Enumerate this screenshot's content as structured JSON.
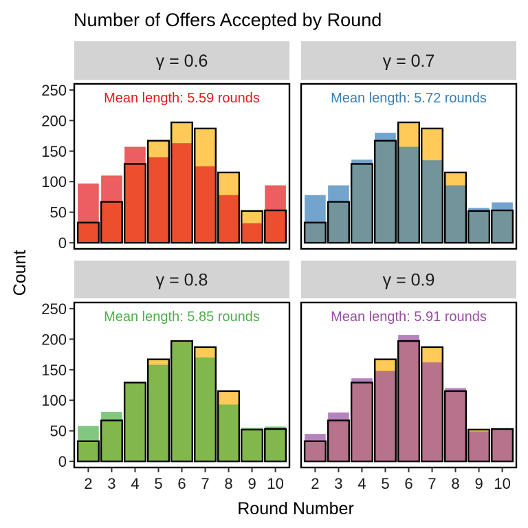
{
  "chart_data": {
    "type": "bar",
    "title": "Number of Offers Accepted by Round",
    "xlabel": "Round Number",
    "ylabel": "Count",
    "ylim": [
      0,
      250
    ],
    "yticks": [
      0,
      50,
      100,
      150,
      200,
      250
    ],
    "categories": [
      "2",
      "3",
      "4",
      "5",
      "6",
      "7",
      "8",
      "9",
      "10"
    ],
    "reference_series": {
      "color": "#FFC13B",
      "values": [
        33,
        67,
        129,
        167,
        197,
        187,
        115,
        52,
        53
      ]
    },
    "panels": [
      {
        "label": "γ = 0.6",
        "annotation": "Mean length: 5.59 rounds",
        "color": "#E41A1C",
        "values": [
          97,
          110,
          157,
          140,
          163,
          125,
          78,
          32,
          94
        ]
      },
      {
        "label": "γ = 0.7",
        "annotation": "Mean length: 5.72 rounds",
        "color": "#377EB8",
        "values": [
          78,
          94,
          136,
          180,
          157,
          135,
          94,
          57,
          66
        ]
      },
      {
        "label": "γ = 0.8",
        "annotation": "Mean length: 5.85 rounds",
        "color": "#4DAF4A",
        "values": [
          58,
          81,
          130,
          158,
          195,
          170,
          93,
          55,
          57
        ]
      },
      {
        "label": "γ = 0.9",
        "annotation": "Mean length: 5.91 rounds",
        "color": "#984EA3",
        "values": [
          45,
          80,
          136,
          148,
          207,
          162,
          120,
          49,
          54
        ]
      }
    ],
    "grid": false,
    "legend": "none"
  }
}
